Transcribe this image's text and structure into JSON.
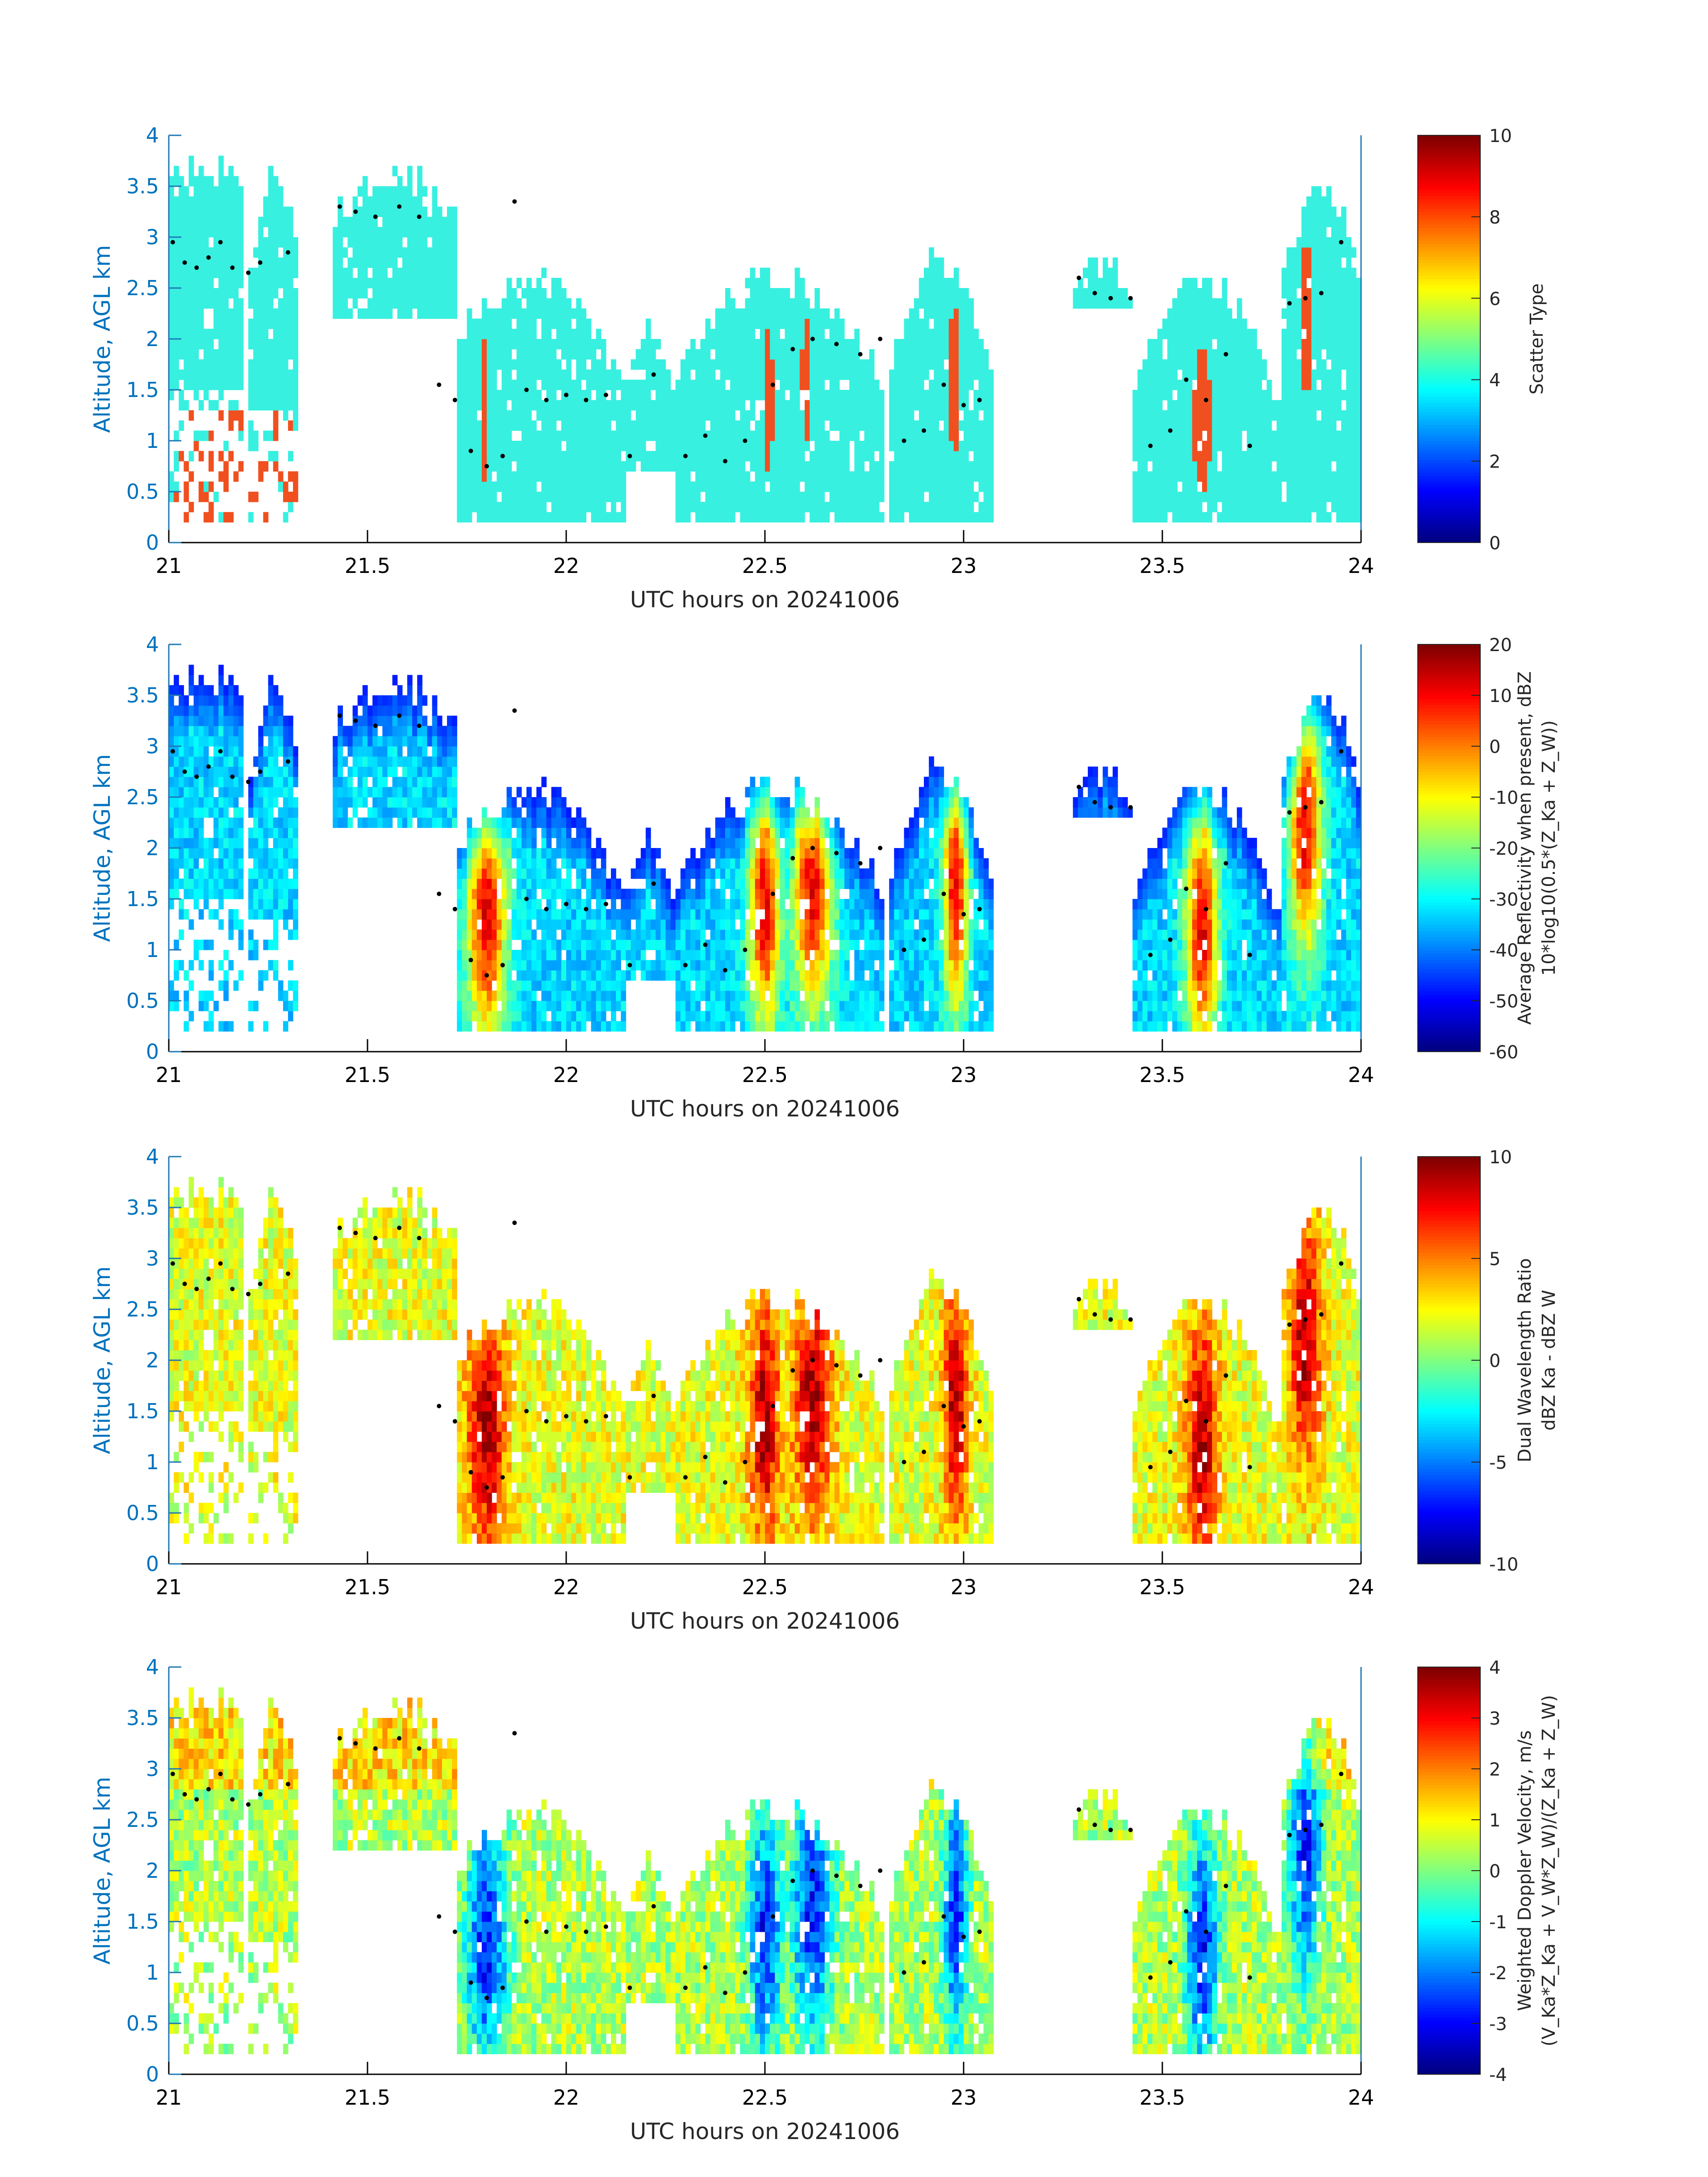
{
  "figure": {
    "colors": {
      "axis": "#1f77b4",
      "axis_label": "#0072bd",
      "tick_text": "#000000",
      "scatter_cyan": "#37f0e0",
      "scatter_orange": "#f05020",
      "marker": "#000000"
    }
  },
  "chart_data": [
    {
      "type": "heatmap",
      "title": "",
      "xlabel": "UTC hours on 20241006",
      "ylabel": "Altitude, AGL km",
      "xlim": [
        21,
        24
      ],
      "ylim": [
        0,
        4
      ],
      "xticks": [
        "21",
        "21.5",
        "22",
        "22.5",
        "23",
        "23.5",
        "24"
      ],
      "yticks": [
        "0",
        "0.5",
        "1",
        "1.5",
        "2",
        "2.5",
        "3",
        "3.5",
        "4"
      ],
      "colorbar": {
        "label_lines": [
          "Scatter Type"
        ],
        "lim": [
          0,
          10
        ],
        "ticks": [
          "0",
          "2",
          "4",
          "6",
          "8",
          "10"
        ],
        "colormap": "jet"
      },
      "field": "scatter"
    },
    {
      "type": "heatmap",
      "title": "",
      "xlabel": "UTC hours on 20241006",
      "ylabel": "Altitude, AGL km",
      "xlim": [
        21,
        24
      ],
      "ylim": [
        0,
        4
      ],
      "xticks": [
        "21",
        "21.5",
        "22",
        "22.5",
        "23",
        "23.5",
        "24"
      ],
      "yticks": [
        "0",
        "0.5",
        "1",
        "1.5",
        "2",
        "2.5",
        "3",
        "3.5",
        "4"
      ],
      "colorbar": {
        "label_lines": [
          "Average Reflectivity when present, dBZ",
          "10*log10(0.5*(Z_Ka + Z_W))"
        ],
        "lim": [
          -60,
          20
        ],
        "ticks": [
          "-60",
          "-50",
          "-40",
          "-30",
          "-20",
          "-10",
          "0",
          "10",
          "20"
        ],
        "colormap": "jet"
      },
      "field": "reflectivity"
    },
    {
      "type": "heatmap",
      "title": "",
      "xlabel": "UTC hours on 20241006",
      "ylabel": "Altitude, AGL km",
      "xlim": [
        21,
        24
      ],
      "ylim": [
        0,
        4
      ],
      "xticks": [
        "21",
        "21.5",
        "22",
        "22.5",
        "23",
        "23.5",
        "24"
      ],
      "yticks": [
        "0",
        "0.5",
        "1",
        "1.5",
        "2",
        "2.5",
        "3",
        "3.5",
        "4"
      ],
      "colorbar": {
        "label_lines": [
          "Dual Wavelength Ratio",
          "dBZ Ka - dBZ W"
        ],
        "lim": [
          -10,
          10
        ],
        "ticks": [
          "-10",
          "-5",
          "0",
          "5",
          "10"
        ],
        "colormap": "jet"
      },
      "field": "dwr"
    },
    {
      "type": "heatmap",
      "title": "",
      "xlabel": "UTC hours on 20241006",
      "ylabel": "Altitude, AGL km",
      "xlim": [
        21,
        24
      ],
      "ylim": [
        0,
        4
      ],
      "xticks": [
        "21",
        "21.5",
        "22",
        "22.5",
        "23",
        "23.5",
        "24"
      ],
      "yticks": [
        "0",
        "0.5",
        "1",
        "1.5",
        "2",
        "2.5",
        "3",
        "3.5",
        "4"
      ],
      "colorbar": {
        "label_lines": [
          "Weighted Doppler Velocity, m/s",
          "(V_Ka*Z_Ka + V_W*Z_W)/(Z_Ka + Z_W)"
        ],
        "lim": [
          -4,
          4
        ],
        "ticks": [
          "-4",
          "-3",
          "-2",
          "-1",
          "0",
          "1",
          "2",
          "3",
          "4"
        ],
        "colormap": "jet"
      },
      "field": "velocity"
    }
  ],
  "cloud_structure": {
    "time_step_hours": 0.0125,
    "height_step_km": 0.1,
    "cloud_base_km": 0.2,
    "echo_columns": [
      {
        "t": [
          21.0,
          21.19
        ],
        "top": [
          3.5,
          3.7
        ],
        "base": 0.2,
        "upper_base": 1.5
      },
      {
        "t": [
          21.2,
          21.33
        ],
        "top": [
          2.6,
          3.6
        ],
        "base": 0.2,
        "upper_base": 1.3
      },
      {
        "t": [
          21.41,
          21.72
        ],
        "top": [
          3.2,
          3.6
        ],
        "base": 2.2,
        "upper_base": 2.2
      },
      {
        "t": [
          21.66,
          22.15
        ],
        "top": [
          1.5,
          2.6
        ],
        "base": 0.2,
        "upper_base": 0.2
      },
      {
        "t": [
          22.14,
          22.27
        ],
        "top": [
          1.5,
          2.1
        ],
        "base": 0.7,
        "upper_base": 0.7
      },
      {
        "t": [
          22.27,
          22.8
        ],
        "top": [
          1.6,
          2.6
        ],
        "base": 0.2,
        "upper_base": 0.2
      },
      {
        "t": [
          22.81,
          23.07
        ],
        "top": [
          1.6,
          2.8
        ],
        "base": 0.2,
        "upper_base": 0.2
      },
      {
        "t": [
          23.27,
          23.43
        ],
        "top": [
          2.4,
          2.7
        ],
        "base": 2.3,
        "upper_base": 2.3
      },
      {
        "t": [
          23.4,
          23.8
        ],
        "top": [
          1.2,
          2.6
        ],
        "base": 0.2,
        "upper_base": 0.2
      },
      {
        "t": [
          23.8,
          24.0
        ],
        "top": [
          2.6,
          3.5
        ],
        "base": 0.2,
        "upper_base": 0.2
      }
    ],
    "cloud_top_markers_km": [
      {
        "t": 21.01,
        "h": 2.95
      },
      {
        "t": 21.04,
        "h": 2.75
      },
      {
        "t": 21.07,
        "h": 2.7
      },
      {
        "t": 21.1,
        "h": 2.8
      },
      {
        "t": 21.13,
        "h": 2.95
      },
      {
        "t": 21.16,
        "h": 2.7
      },
      {
        "t": 21.2,
        "h": 2.65
      },
      {
        "t": 21.23,
        "h": 2.75
      },
      {
        "t": 21.3,
        "h": 2.85
      },
      {
        "t": 21.43,
        "h": 3.3
      },
      {
        "t": 21.47,
        "h": 3.25
      },
      {
        "t": 21.52,
        "h": 3.2
      },
      {
        "t": 21.58,
        "h": 3.3
      },
      {
        "t": 21.63,
        "h": 3.2
      },
      {
        "t": 21.68,
        "h": 1.55
      },
      {
        "t": 21.72,
        "h": 1.4
      },
      {
        "t": 21.76,
        "h": 0.9
      },
      {
        "t": 21.8,
        "h": 0.75
      },
      {
        "t": 21.84,
        "h": 0.85
      },
      {
        "t": 21.87,
        "h": 3.35
      },
      {
        "t": 21.9,
        "h": 1.5
      },
      {
        "t": 21.95,
        "h": 1.4
      },
      {
        "t": 22.0,
        "h": 1.45
      },
      {
        "t": 22.05,
        "h": 1.4
      },
      {
        "t": 22.1,
        "h": 1.45
      },
      {
        "t": 22.16,
        "h": 0.85
      },
      {
        "t": 22.22,
        "h": 1.65
      },
      {
        "t": 22.3,
        "h": 0.85
      },
      {
        "t": 22.35,
        "h": 1.05
      },
      {
        "t": 22.4,
        "h": 0.8
      },
      {
        "t": 22.45,
        "h": 1.0
      },
      {
        "t": 22.52,
        "h": 1.55
      },
      {
        "t": 22.57,
        "h": 1.9
      },
      {
        "t": 22.62,
        "h": 2.0
      },
      {
        "t": 22.68,
        "h": 1.95
      },
      {
        "t": 22.74,
        "h": 1.85
      },
      {
        "t": 22.79,
        "h": 2.0
      },
      {
        "t": 22.85,
        "h": 1.0
      },
      {
        "t": 22.9,
        "h": 1.1
      },
      {
        "t": 22.95,
        "h": 1.55
      },
      {
        "t": 23.0,
        "h": 1.35
      },
      {
        "t": 23.04,
        "h": 1.4
      },
      {
        "t": 23.29,
        "h": 2.6
      },
      {
        "t": 23.33,
        "h": 2.45
      },
      {
        "t": 23.37,
        "h": 2.4
      },
      {
        "t": 23.42,
        "h": 2.4
      },
      {
        "t": 23.47,
        "h": 0.95
      },
      {
        "t": 23.52,
        "h": 1.1
      },
      {
        "t": 23.56,
        "h": 1.6
      },
      {
        "t": 23.61,
        "h": 1.4
      },
      {
        "t": 23.66,
        "h": 1.85
      },
      {
        "t": 23.72,
        "h": 0.95
      },
      {
        "t": 23.82,
        "h": 2.35
      },
      {
        "t": 23.86,
        "h": 2.4
      },
      {
        "t": 23.9,
        "h": 2.45
      },
      {
        "t": 23.95,
        "h": 2.95
      }
    ],
    "convective_cores": [
      {
        "t": 21.8,
        "peak_km": 1.3,
        "width_h": 0.05
      },
      {
        "t": 22.5,
        "peak_km": 1.4,
        "width_h": 0.04
      },
      {
        "t": 22.62,
        "peak_km": 1.6,
        "width_h": 0.05
      },
      {
        "t": 22.98,
        "peak_km": 1.6,
        "width_h": 0.03
      },
      {
        "t": 23.6,
        "peak_km": 1.2,
        "width_h": 0.04
      },
      {
        "t": 23.86,
        "peak_km": 2.2,
        "width_h": 0.04
      }
    ]
  }
}
